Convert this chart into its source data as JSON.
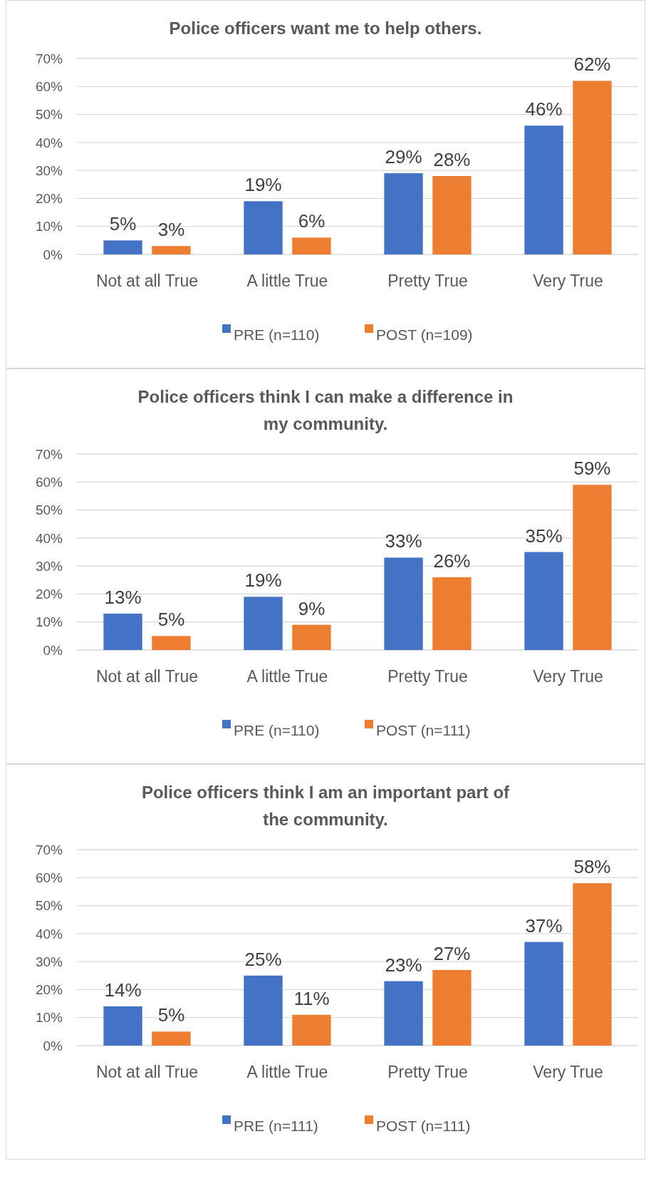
{
  "chart_data": [
    {
      "type": "bar",
      "title": "Police officers want me to help others.",
      "categories": [
        "Not at all True",
        "A little True",
        "Pretty True",
        "Very True"
      ],
      "series": [
        {
          "name": "PRE (n=110)",
          "color": "#4472c4",
          "values": [
            5,
            19,
            29,
            46
          ],
          "value_labels": [
            "5%",
            "19%",
            "29%",
            "46%"
          ]
        },
        {
          "name": "POST (n=109)",
          "color": "#ed7d31",
          "values": [
            3,
            6,
            28,
            62
          ],
          "value_labels": [
            "3%",
            "6%",
            "28%",
            "62%"
          ]
        }
      ],
      "ylim": [
        0,
        70
      ],
      "yticks": [
        {
          "value": 0,
          "label": "0%"
        },
        {
          "value": 10,
          "label": "10%"
        },
        {
          "value": 20,
          "label": "20%"
        },
        {
          "value": 30,
          "label": "30%"
        },
        {
          "value": 40,
          "label": "40%"
        },
        {
          "value": 50,
          "label": "50%"
        },
        {
          "value": 60,
          "label": "60%"
        },
        {
          "value": 70,
          "label": "70%"
        }
      ],
      "grid": "y",
      "legend": "bottom"
    },
    {
      "type": "bar",
      "title": "Police officers think I can make a difference in my community.",
      "categories": [
        "Not at all True",
        "A little True",
        "Pretty True",
        "Very True"
      ],
      "series": [
        {
          "name": "PRE (n=110)",
          "color": "#4472c4",
          "values": [
            13,
            19,
            33,
            35
          ],
          "value_labels": [
            "13%",
            "19%",
            "33%",
            "35%"
          ]
        },
        {
          "name": "POST (n=111)",
          "color": "#ed7d31",
          "values": [
            5,
            9,
            26,
            59
          ],
          "value_labels": [
            "5%",
            "9%",
            "26%",
            "59%"
          ]
        }
      ],
      "ylim": [
        0,
        70
      ],
      "yticks": [
        {
          "value": 0,
          "label": "0%"
        },
        {
          "value": 10,
          "label": "10%"
        },
        {
          "value": 20,
          "label": "20%"
        },
        {
          "value": 30,
          "label": "30%"
        },
        {
          "value": 40,
          "label": "40%"
        },
        {
          "value": 50,
          "label": "50%"
        },
        {
          "value": 60,
          "label": "60%"
        },
        {
          "value": 70,
          "label": "70%"
        }
      ],
      "grid": "y",
      "legend": "bottom"
    },
    {
      "type": "bar",
      "title": "Police officers think I am an important part of the community.",
      "categories": [
        "Not at all True",
        "A little True",
        "Pretty True",
        "Very True"
      ],
      "series": [
        {
          "name": "PRE (n=111)",
          "color": "#4472c4",
          "values": [
            14,
            25,
            23,
            37
          ],
          "value_labels": [
            "14%",
            "25%",
            "23%",
            "37%"
          ]
        },
        {
          "name": "POST (n=111)",
          "color": "#ed7d31",
          "values": [
            5,
            11,
            27,
            58
          ],
          "value_labels": [
            "5%",
            "11%",
            "27%",
            "58%"
          ]
        }
      ],
      "ylim": [
        0,
        70
      ],
      "yticks": [
        {
          "value": 0,
          "label": "0%"
        },
        {
          "value": 10,
          "label": "10%"
        },
        {
          "value": 20,
          "label": "20%"
        },
        {
          "value": 30,
          "label": "30%"
        },
        {
          "value": 40,
          "label": "40%"
        },
        {
          "value": 50,
          "label": "50%"
        },
        {
          "value": 60,
          "label": "60%"
        },
        {
          "value": 70,
          "label": "70%"
        }
      ],
      "grid": "y",
      "legend": "bottom"
    }
  ]
}
